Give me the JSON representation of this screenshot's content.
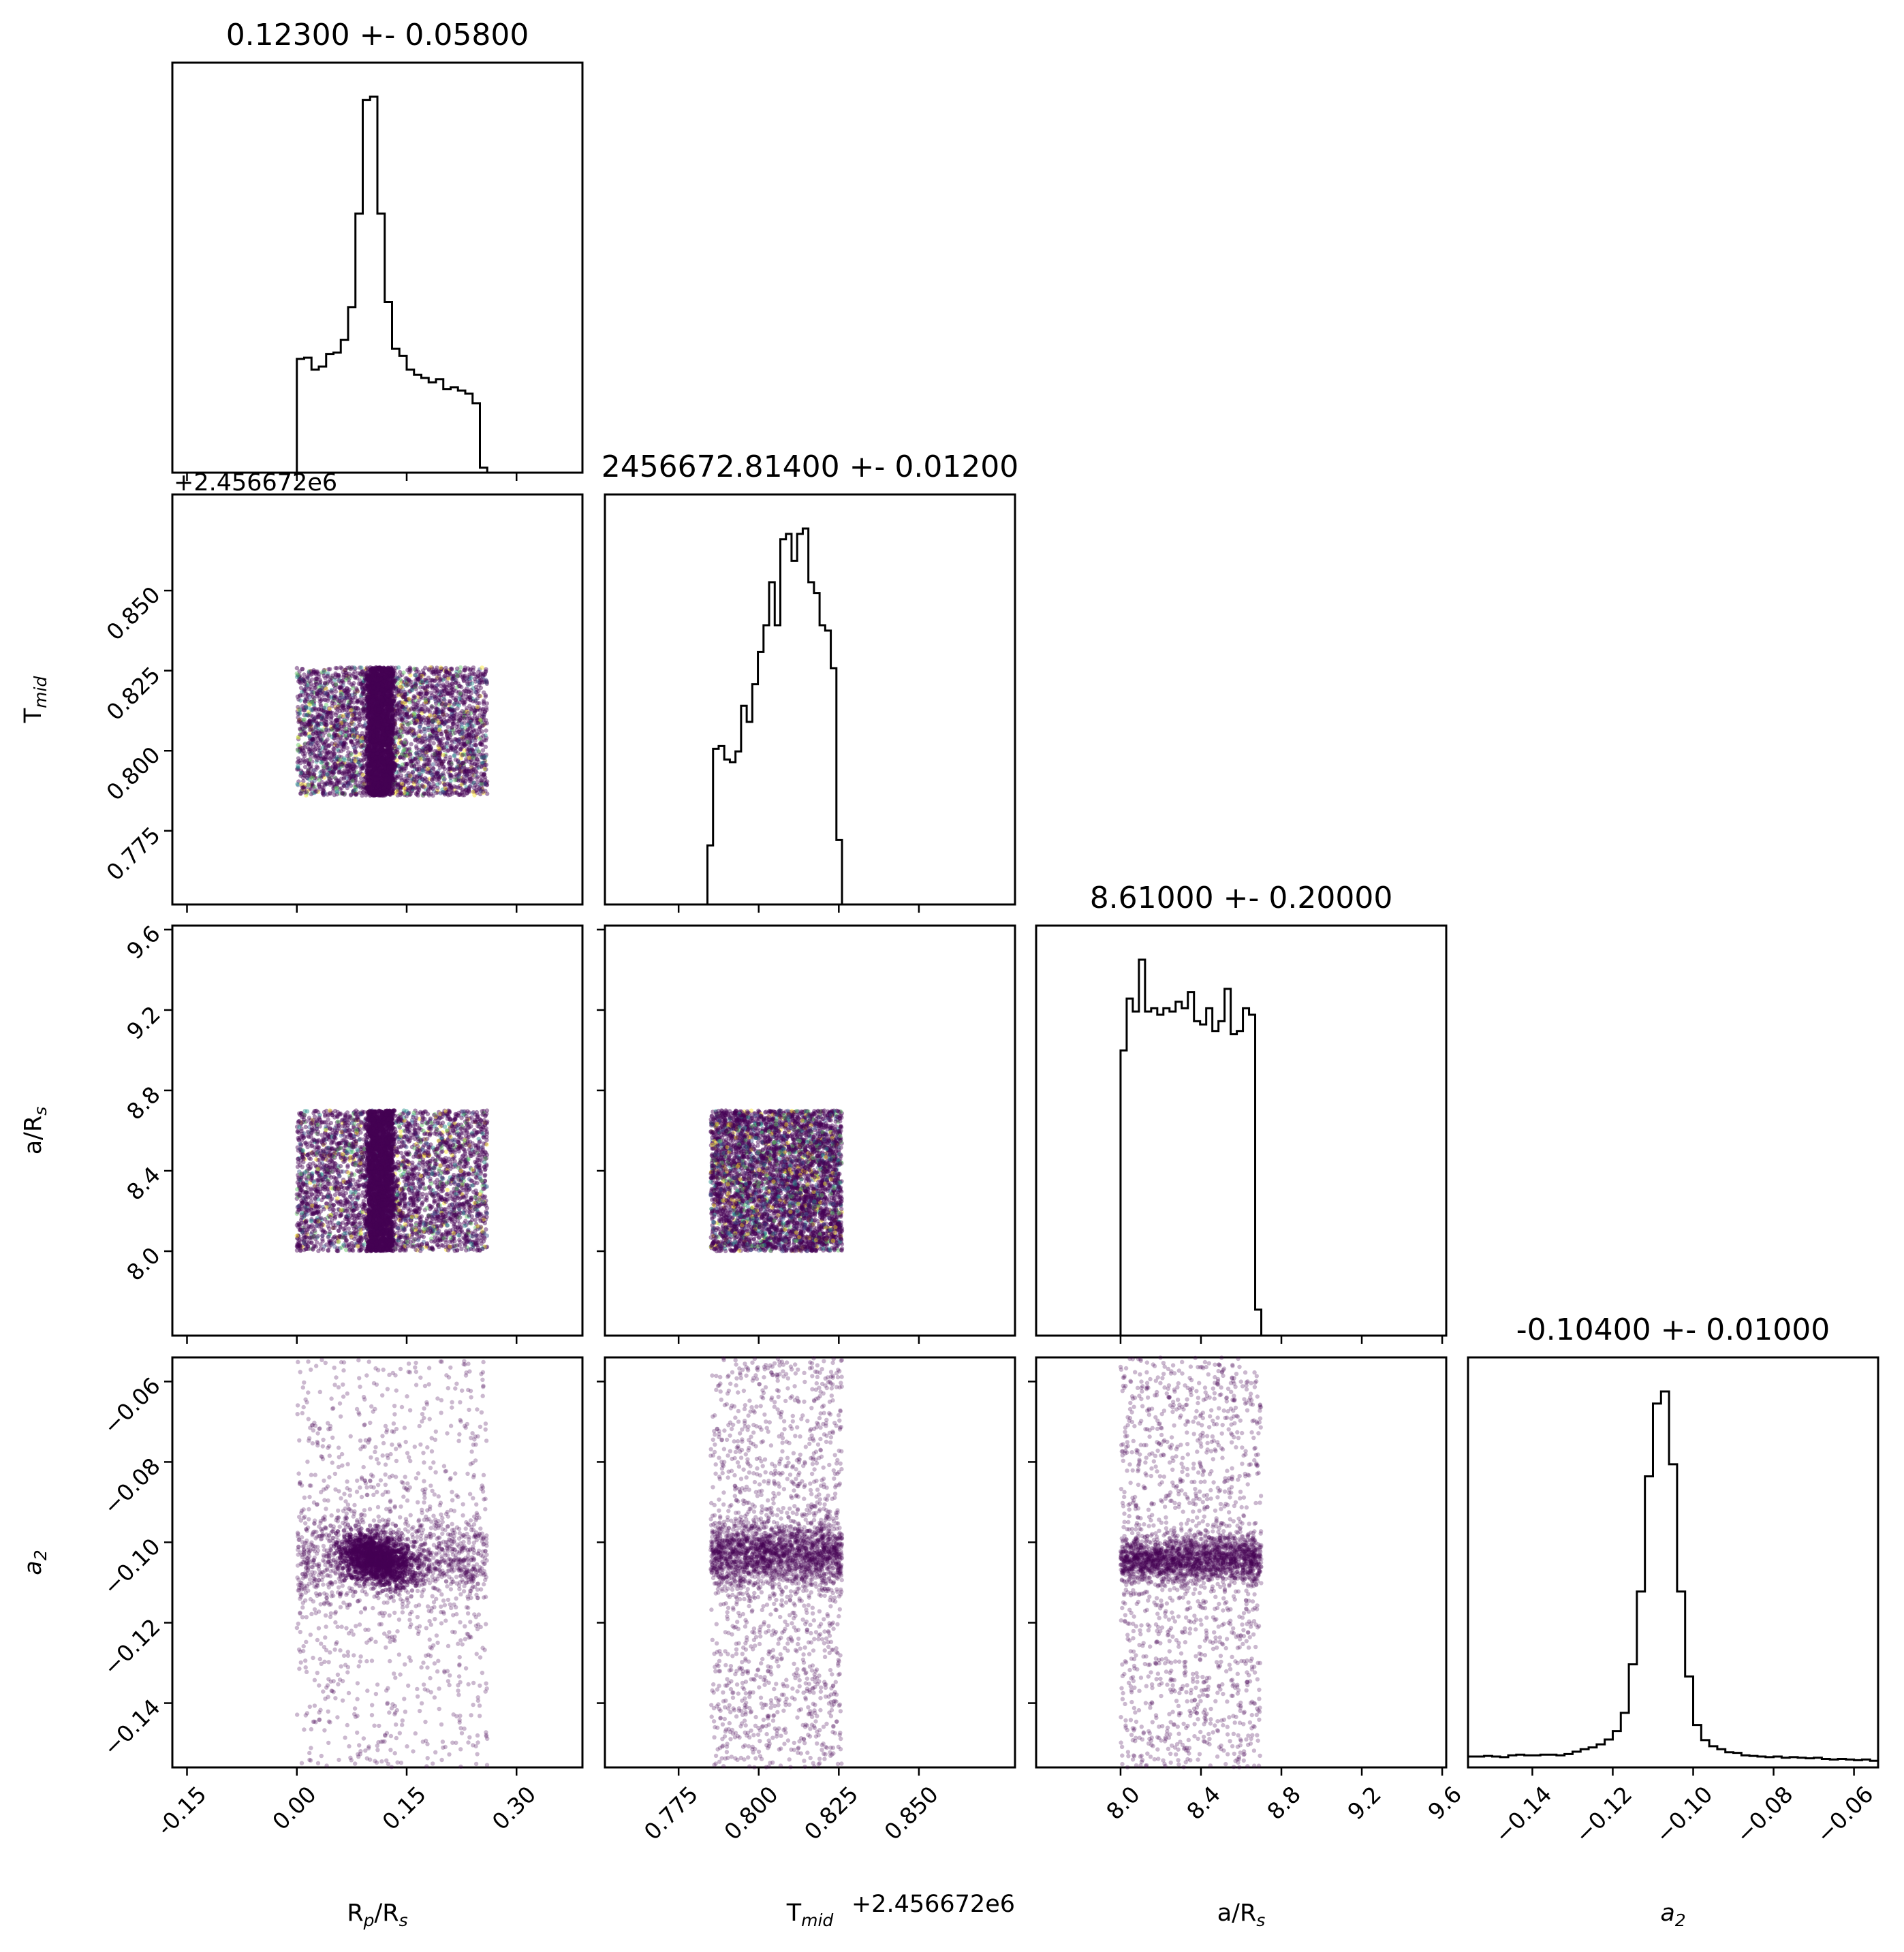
{
  "chart_data": {
    "type": "scatter",
    "subtype": "corner-plot",
    "parameters": [
      {
        "key": "rp",
        "label": "R",
        "label_sub": "p",
        "label_rest": "/R",
        "label_sub2": "s",
        "title": "0.12300 +- 0.05800",
        "range": [
          -0.17,
          0.39
        ],
        "ticks": [
          "-0.15",
          "0.00",
          "0.15",
          "0.30"
        ],
        "tick_values": [
          -0.15,
          0.0,
          0.15,
          0.3
        ]
      },
      {
        "key": "tmid",
        "label": "T",
        "label_sub": "mid",
        "label_rest": "",
        "label_sub2": "",
        "title": "2456672.81400 +- 0.01200",
        "range": [
          0.752,
          0.88
        ],
        "ticks": [
          "0.775",
          "0.800",
          "0.825",
          "0.850"
        ],
        "tick_values": [
          0.775,
          0.8,
          0.825,
          0.85
        ],
        "offset_text": "+2.456672e6"
      },
      {
        "key": "ars",
        "label": "a/R",
        "label_sub": "s",
        "label_rest": "",
        "label_sub2": "",
        "title": "8.61000 +- 0.20000",
        "range": [
          7.58,
          9.62
        ],
        "ticks": [
          "8.0",
          "8.4",
          "8.8",
          "9.2",
          "9.6"
        ],
        "tick_values": [
          8.0,
          8.4,
          8.8,
          9.2,
          9.6
        ]
      },
      {
        "key": "a2",
        "label": "a",
        "label_sub": "2",
        "label_rest": "",
        "label_sub2": "",
        "title": "-0.10400 +- 0.01000",
        "range": [
          -0.156,
          -0.054
        ],
        "ticks": [
          "−0.14",
          "−0.12",
          "−0.10",
          "−0.08",
          "−0.06"
        ],
        "tick_values": [
          -0.14,
          -0.12,
          -0.1,
          -0.08,
          -0.06
        ]
      }
    ],
    "histograms": {
      "rp": {
        "x0": 0.0,
        "x1": 0.26,
        "bins": 26,
        "counts": [
          180,
          182,
          163,
          168,
          188,
          190,
          210,
          262,
          410,
          590,
          595,
          410,
          270,
          196,
          185,
          163,
          155,
          150,
          143,
          148,
          132,
          135,
          130,
          125,
          110,
          8
        ]
      },
      "tmid": {
        "x0": 0.784,
        "x1": 0.826,
        "bins": 24,
        "counts": [
          110,
          290,
          295,
          270,
          265,
          285,
          370,
          340,
          410,
          470,
          520,
          600,
          520,
          680,
          690,
          640,
          690,
          700,
          600,
          580,
          520,
          510,
          440,
          120
        ]
      },
      "ars": {
        "x0": 8.0,
        "x1": 8.7,
        "bins": 23,
        "counts": [
          440,
          520,
          500,
          580,
          500,
          505,
          495,
          505,
          500,
          515,
          505,
          530,
          485,
          480,
          505,
          470,
          485,
          535,
          465,
          470,
          505,
          495,
          40
        ]
      },
      "a2": {
        "x0": -0.156,
        "x1": -0.054,
        "bins": 51,
        "counts": [
          18,
          18,
          19,
          18,
          17,
          20,
          21,
          20,
          20,
          21,
          21,
          20,
          22,
          26,
          30,
          33,
          38,
          46,
          60,
          90,
          170,
          290,
          480,
          600,
          620,
          500,
          290,
          150,
          70,
          45,
          35,
          30,
          25,
          24,
          20,
          19,
          18,
          17,
          18,
          16,
          17,
          16,
          15,
          16,
          14,
          13,
          14,
          13,
          12,
          13,
          11
        ]
      }
    },
    "scatter": {
      "tmid_vs_rp": {
        "x_range": [
          0.0,
          0.26
        ],
        "y_range": [
          0.786,
          0.826
        ],
        "x_core": 0.114,
        "x_core_width": 0.016
      },
      "ars_vs_rp": {
        "x_range": [
          0.0,
          0.26
        ],
        "y_range": [
          8.0,
          8.7
        ],
        "x_core": 0.114,
        "x_core_width": 0.016
      },
      "ars_vs_tmid": {
        "x_range": [
          0.785,
          0.826
        ],
        "y_range": [
          8.0,
          8.7
        ]
      },
      "a2_vs_rp": {
        "x_range": [
          0.0,
          0.26
        ],
        "y_center": -0.104,
        "y_spread": 0.006,
        "core_center": [
          0.11,
          -0.104
        ]
      },
      "a2_vs_tmid": {
        "x_range": [
          0.785,
          0.826
        ],
        "y_center": -0.103,
        "y_spread": 0.004
      },
      "a2_vs_ars": {
        "x_range": [
          8.0,
          8.7
        ],
        "y_center": -0.104,
        "y_spread": 0.003
      }
    },
    "colors": {
      "axis": "#000000",
      "points": [
        "#440154",
        "#3b528b",
        "#21918c",
        "#5ec962",
        "#fde725"
      ],
      "histogram": "#000000"
    }
  }
}
